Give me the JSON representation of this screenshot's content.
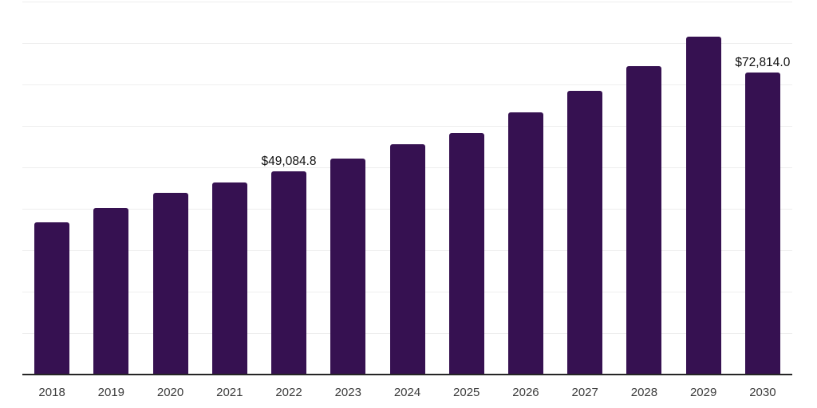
{
  "chart_data": {
    "type": "bar",
    "title": "",
    "xlabel": "",
    "ylabel": "",
    "categories": [
      "2018",
      "2019",
      "2020",
      "2021",
      "2022",
      "2023",
      "2024",
      "2025",
      "2026",
      "2027",
      "2028",
      "2029",
      "2030"
    ],
    "values": [
      36700,
      40200,
      43800,
      46300,
      49084.8,
      52100,
      55600,
      58300,
      63300,
      68500,
      74400,
      81500,
      72814
    ],
    "annotations": [
      {
        "category": "2022",
        "text": "$49,084.8"
      },
      {
        "category": "2030",
        "text": "$72,814.0"
      }
    ],
    "ylim": [
      0,
      90000
    ],
    "grid_interval": 10000,
    "grid_on": true,
    "legend": "none",
    "colors": {
      "bar": "#361151",
      "grid": "#eeeeee",
      "axis": "#262626",
      "tick_label": "#3c3c3c",
      "value_label": "#111111",
      "background": "#ffffff"
    }
  }
}
